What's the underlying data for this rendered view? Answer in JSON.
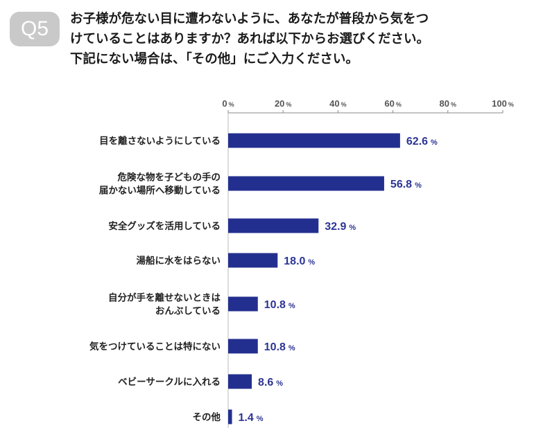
{
  "header": {
    "badge": "Q5",
    "question_lines": [
      "お子様が危ない目に遭わないように、あなたが普段から気をつ",
      "けていることはありますか？あれば以下からお選びください。",
      "下記にない場合は、「その他」にご入力ください。"
    ]
  },
  "colors": {
    "bar": "#232f8f",
    "value_text": "#2b3494",
    "axis": "#888888",
    "badge": "#c9c9c9"
  },
  "chart_data": {
    "type": "bar",
    "orientation": "horizontal",
    "xlim": [
      0,
      100
    ],
    "ticks": [
      0,
      20,
      40,
      60,
      80,
      100
    ],
    "tick_unit": "%",
    "value_unit": "%",
    "categories": [
      [
        "目を離さないようにしている"
      ],
      [
        "危険な物を子どもの手の",
        "届かない場所へ移動している"
      ],
      [
        "安全グッズを活用している"
      ],
      [
        "湯船に水をはらない"
      ],
      [
        "自分が手を離せないときは",
        "おんぶしている"
      ],
      [
        "気をつけていることは特にない"
      ],
      [
        "ベビーサークルに入れる"
      ],
      [
        "その他"
      ]
    ],
    "values": [
      62.6,
      56.8,
      32.9,
      18.0,
      10.8,
      10.8,
      8.6,
      1.4
    ],
    "value_labels": [
      "62.6",
      "56.8",
      "32.9",
      "18.0",
      "10.8",
      "10.8",
      "8.6",
      "1.4"
    ]
  }
}
